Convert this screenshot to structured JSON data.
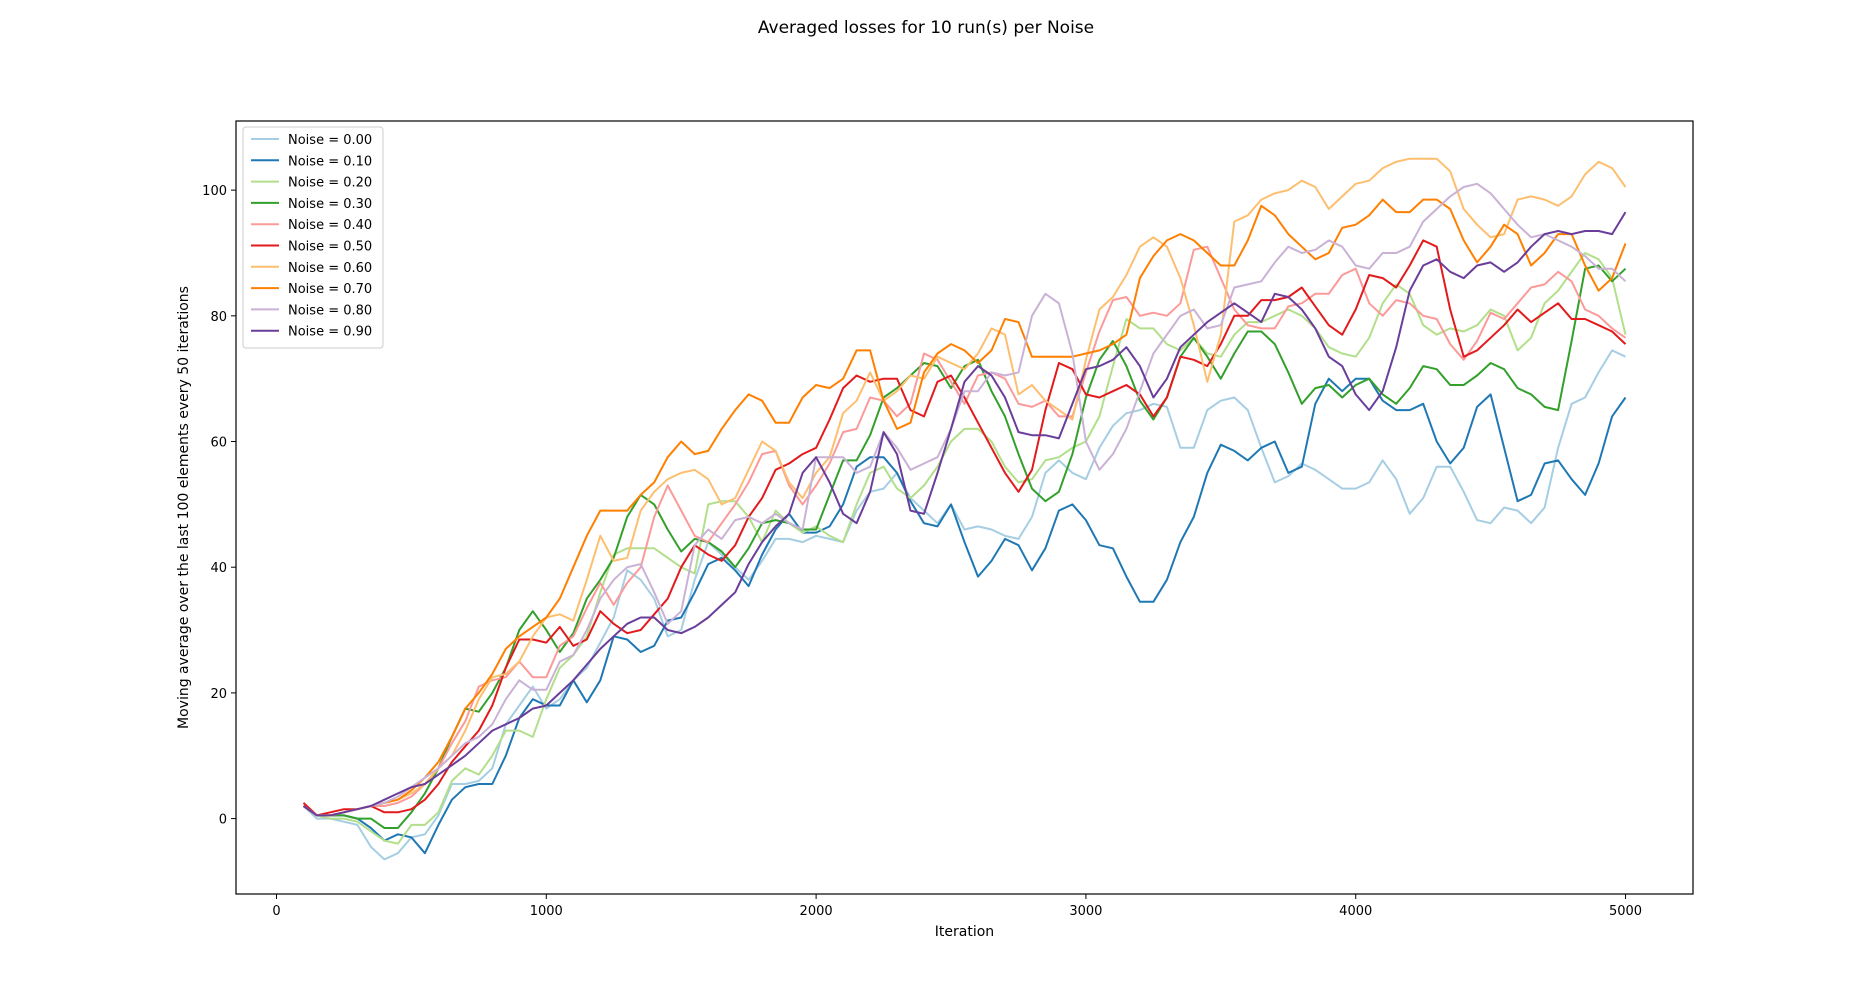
{
  "chart_data": {
    "type": "line",
    "title": "Averaged losses for 10 run(s) per Noise",
    "xlabel": "Iteration",
    "ylabel": "Moving average over the last 100 elements every 50 iterations",
    "xlim": [
      -150,
      5250
    ],
    "ylim": [
      -12,
      111
    ],
    "xticks": [
      0,
      1000,
      2000,
      3000,
      4000,
      5000
    ],
    "yticks": [
      0,
      20,
      40,
      60,
      80,
      100
    ],
    "grid": false,
    "legend": "top-left",
    "x": [
      100,
      150,
      200,
      250,
      300,
      350,
      400,
      450,
      500,
      550,
      600,
      650,
      700,
      750,
      800,
      850,
      900,
      950,
      1000,
      1050,
      1100,
      1150,
      1200,
      1250,
      1300,
      1350,
      1400,
      1450,
      1500,
      1550,
      1600,
      1650,
      1700,
      1750,
      1800,
      1850,
      1900,
      1950,
      2000,
      2050,
      2100,
      2150,
      2200,
      2250,
      2300,
      2350,
      2400,
      2450,
      2500,
      2550,
      2600,
      2650,
      2700,
      2750,
      2800,
      2850,
      2900,
      2950,
      3000,
      3050,
      3100,
      3150,
      3200,
      3250,
      3300,
      3350,
      3400,
      3450,
      3500,
      3550,
      3600,
      3650,
      3700,
      3750,
      3800,
      3850,
      3900,
      3950,
      4000,
      4050,
      4100,
      4150,
      4200,
      4250,
      4300,
      4350,
      4400,
      4450,
      4500,
      4550,
      4600,
      4650,
      4700,
      4750,
      4800,
      4850,
      4900,
      4950,
      5000
    ],
    "series": [
      {
        "name": "Noise = 0.00",
        "color": "#a6cee3",
        "values": [
          2.0,
          0.0,
          0.0,
          -0.5,
          -1.0,
          -4.5,
          -6.5,
          -5.5,
          -3.0,
          -2.5,
          0.5,
          5.5,
          5.5,
          6.0,
          8.0,
          15.0,
          18.0,
          21.0,
          17.5,
          19.0,
          22.0,
          24.0,
          28.0,
          32.0,
          39.5,
          38.0,
          35.0,
          29.0,
          30.0,
          38.0,
          44.0,
          42.0,
          40.0,
          38.0,
          41.0,
          44.5,
          44.5,
          44.0,
          45.0,
          44.5,
          44.0,
          49.0,
          52.0,
          52.5,
          55.0,
          51.0,
          49.0,
          47.0,
          50.0,
          46.0,
          46.5,
          46.0,
          45.0,
          44.5,
          48.0,
          55.0,
          57.0,
          55.0,
          54.0,
          59.0,
          62.5,
          64.5,
          65.0,
          66.0,
          65.5,
          59.0,
          59.0,
          65.0,
          66.5,
          67.0,
          65.0,
          59.0,
          53.5,
          54.5,
          56.5,
          55.5,
          54.0,
          52.5,
          52.5,
          53.5,
          57.0,
          54.0,
          48.5,
          51.0,
          56.0,
          56.0,
          52.0,
          47.5,
          47.0,
          49.5,
          49.0,
          47.0,
          49.5,
          59.0,
          66.0,
          67.0,
          71.0,
          74.5,
          73.5
        ]
      },
      {
        "name": "Noise = 0.10",
        "color": "#1f78b4",
        "values": [
          2.0,
          0.5,
          0.5,
          0.5,
          0.0,
          -1.5,
          -3.5,
          -2.5,
          -3.0,
          -5.5,
          -1.0,
          3.0,
          5.0,
          5.5,
          5.5,
          10.0,
          16.0,
          19.0,
          18.0,
          18.0,
          22.0,
          18.5,
          22.0,
          29.0,
          28.5,
          26.5,
          27.5,
          31.5,
          32.0,
          36.0,
          40.5,
          41.5,
          39.5,
          37.0,
          42.0,
          46.0,
          48.5,
          45.5,
          45.5,
          46.5,
          50.0,
          56.0,
          57.5,
          57.5,
          55.0,
          50.5,
          47.0,
          46.5,
          50.0,
          44.0,
          38.5,
          41.0,
          44.5,
          43.5,
          39.5,
          43.0,
          49.0,
          50.0,
          47.5,
          43.5,
          43.0,
          38.5,
          34.5,
          34.5,
          38.0,
          44.0,
          48.0,
          55.0,
          59.5,
          58.5,
          57.0,
          59.0,
          60.0,
          55.0,
          56.0,
          66.0,
          70.0,
          68.0,
          70.0,
          70.0,
          66.5,
          65.0,
          65.0,
          66.0,
          60.0,
          56.5,
          59.0,
          65.5,
          67.5,
          59.0,
          50.5,
          51.5,
          56.5,
          57.0,
          54.0,
          51.5,
          56.5,
          64.0,
          67.0
        ]
      },
      {
        "name": "Noise = 0.20",
        "color": "#b2df8a",
        "values": [
          2.0,
          0.5,
          0.0,
          0.0,
          -0.5,
          -2.0,
          -3.5,
          -4.0,
          -1.0,
          -1.0,
          1.0,
          6.0,
          8.0,
          7.0,
          10.0,
          14.0,
          14.0,
          13.0,
          19.0,
          24.0,
          26.0,
          29.0,
          36.0,
          42.0,
          43.0,
          43.0,
          43.0,
          41.5,
          40.0,
          39.0,
          50.0,
          50.5,
          50.5,
          48.0,
          44.0,
          49.0,
          47.0,
          45.5,
          46.5,
          45.0,
          44.0,
          50.0,
          55.0,
          56.0,
          52.5,
          51.0,
          53.0,
          56.0,
          60.0,
          62.0,
          62.0,
          60.0,
          56.0,
          53.5,
          54.0,
          57.0,
          57.5,
          59.0,
          60.0,
          64.0,
          72.0,
          79.5,
          78.0,
          78.0,
          75.5,
          74.5,
          76.5,
          74.0,
          73.5,
          77.0,
          79.0,
          79.0,
          80.0,
          81.0,
          80.0,
          78.0,
          75.0,
          74.0,
          73.5,
          76.5,
          82.0,
          85.0,
          83.5,
          78.5,
          77.0,
          78.0,
          77.5,
          78.5,
          81.0,
          80.0,
          74.5,
          76.5,
          82.0,
          84.0,
          87.0,
          90.0,
          89.0,
          86.0,
          77.0
        ]
      },
      {
        "name": "Noise = 0.30",
        "color": "#33a02c",
        "values": [
          2.0,
          0.5,
          0.5,
          0.5,
          0.0,
          0.0,
          -1.5,
          -1.5,
          1.0,
          4.0,
          8.0,
          13.0,
          17.5,
          17.0,
          20.0,
          24.0,
          30.0,
          33.0,
          30.0,
          26.5,
          29.5,
          35.0,
          38.0,
          41.5,
          48.0,
          51.5,
          50.0,
          46.0,
          42.5,
          44.5,
          44.0,
          42.5,
          40.0,
          43.0,
          47.0,
          47.5,
          47.0,
          46.0,
          46.0,
          51.5,
          57.0,
          57.0,
          61.0,
          67.0,
          68.5,
          70.5,
          72.5,
          72.0,
          68.5,
          72.0,
          73.0,
          68.0,
          64.0,
          58.0,
          52.5,
          50.5,
          52.0,
          58.0,
          67.0,
          73.0,
          76.0,
          72.0,
          66.5,
          63.5,
          67.0,
          73.5,
          76.5,
          73.5,
          70.0,
          74.0,
          77.5,
          77.5,
          75.5,
          71.0,
          66.0,
          68.5,
          69.0,
          67.0,
          69.0,
          70.0,
          67.5,
          66.0,
          68.5,
          72.0,
          71.5,
          69.0,
          69.0,
          70.5,
          72.5,
          71.5,
          68.5,
          67.5,
          65.5,
          65.0,
          76.0,
          87.5,
          88.0,
          85.5,
          87.5
        ]
      },
      {
        "name": "Noise = 0.40",
        "color": "#fb9a99",
        "values": [
          2.0,
          0.5,
          0.5,
          1.0,
          1.5,
          2.0,
          2.0,
          2.5,
          3.5,
          5.5,
          8.0,
          12.0,
          15.5,
          21.0,
          22.0,
          22.5,
          25.0,
          22.5,
          22.5,
          27.5,
          29.0,
          33.5,
          37.5,
          34.0,
          37.5,
          40.0,
          48.0,
          53.0,
          49.0,
          45.0,
          44.0,
          47.0,
          50.0,
          53.5,
          58.0,
          58.5,
          53.0,
          50.0,
          53.0,
          56.5,
          61.5,
          62.0,
          67.0,
          66.5,
          64.0,
          66.0,
          74.0,
          73.0,
          69.5,
          66.0,
          70.5,
          71.0,
          70.0,
          66.0,
          65.5,
          66.5,
          64.0,
          64.0,
          71.0,
          77.5,
          82.5,
          83.0,
          80.0,
          80.5,
          80.0,
          82.0,
          90.5,
          91.0,
          86.0,
          81.0,
          78.5,
          78.0,
          78.0,
          81.5,
          82.0,
          83.5,
          83.5,
          86.5,
          87.5,
          82.0,
          80.0,
          82.5,
          82.0,
          80.0,
          79.5,
          75.5,
          73.0,
          76.0,
          80.5,
          79.5,
          82.0,
          84.5,
          85.0,
          87.0,
          85.5,
          81.0,
          80.0,
          78.0,
          76.5
        ]
      },
      {
        "name": "Noise = 0.50",
        "color": "#e31a1c",
        "values": [
          2.5,
          0.5,
          1.0,
          1.5,
          1.5,
          2.0,
          1.0,
          1.0,
          1.5,
          3.0,
          5.5,
          9.0,
          11.5,
          14.0,
          18.0,
          24.0,
          28.5,
          28.5,
          28.0,
          30.5,
          27.5,
          28.5,
          33.0,
          31.0,
          29.5,
          30.0,
          32.5,
          35.0,
          40.0,
          43.5,
          42.0,
          41.0,
          43.5,
          48.0,
          51.0,
          55.5,
          56.5,
          58.0,
          59.0,
          63.5,
          68.5,
          70.5,
          69.5,
          70.0,
          70.0,
          65.0,
          64.0,
          69.5,
          70.5,
          67.0,
          63.0,
          59.0,
          55.0,
          52.0,
          55.5,
          65.0,
          72.5,
          71.5,
          67.5,
          67.0,
          68.0,
          69.0,
          67.5,
          64.0,
          67.0,
          73.5,
          73.0,
          72.0,
          75.5,
          80.0,
          80.0,
          82.5,
          82.5,
          83.0,
          84.5,
          81.5,
          78.5,
          77.0,
          81.0,
          86.5,
          86.0,
          84.5,
          88.0,
          92.0,
          91.0,
          81.0,
          73.5,
          74.5,
          76.5,
          78.5,
          81.0,
          79.0,
          80.5,
          82.0,
          79.5,
          79.5,
          78.5,
          77.5,
          75.5
        ]
      },
      {
        "name": "Noise = 0.60",
        "color": "#fdbf6f",
        "values": [
          2.0,
          0.5,
          0.5,
          1.0,
          1.5,
          2.0,
          2.5,
          3.0,
          4.0,
          5.5,
          8.0,
          10.0,
          14.0,
          19.0,
          22.5,
          23.0,
          25.0,
          29.0,
          32.0,
          32.5,
          31.5,
          38.0,
          45.0,
          41.0,
          41.5,
          49.0,
          52.0,
          54.0,
          55.0,
          55.5,
          54.0,
          50.0,
          51.0,
          55.5,
          60.0,
          58.5,
          53.5,
          51.0,
          55.0,
          57.5,
          64.5,
          66.5,
          71.0,
          66.5,
          68.0,
          70.5,
          70.0,
          73.5,
          72.5,
          71.5,
          74.0,
          78.0,
          77.0,
          67.5,
          69.0,
          66.5,
          65.0,
          63.5,
          73.0,
          81.0,
          83.0,
          86.5,
          91.0,
          92.5,
          91.0,
          86.0,
          78.5,
          69.5,
          77.0,
          95.0,
          96.0,
          98.5,
          99.5,
          100.0,
          101.5,
          100.5,
          97.0,
          99.0,
          101.0,
          101.5,
          103.5,
          104.5,
          105.0,
          105.0,
          105.0,
          103.0,
          97.0,
          94.5,
          92.5,
          93.0,
          98.5,
          99.0,
          98.5,
          97.5,
          99.0,
          102.5,
          104.5,
          103.5,
          100.5
        ]
      },
      {
        "name": "Noise = 0.70",
        "color": "#ff7f00",
        "values": [
          2.0,
          0.5,
          0.5,
          1.0,
          1.5,
          2.0,
          2.5,
          3.0,
          4.5,
          6.5,
          9.0,
          13.0,
          17.5,
          20.0,
          23.0,
          27.0,
          29.0,
          30.5,
          32.0,
          35.0,
          40.0,
          45.0,
          49.0,
          49.0,
          49.0,
          51.5,
          53.5,
          57.5,
          60.0,
          58.0,
          58.5,
          62.0,
          65.0,
          67.5,
          66.5,
          63.0,
          63.0,
          67.0,
          69.0,
          68.5,
          70.0,
          74.5,
          74.5,
          66.5,
          62.0,
          63.0,
          71.0,
          74.0,
          75.5,
          74.5,
          72.5,
          74.5,
          79.5,
          79.0,
          73.5,
          73.5,
          73.5,
          73.5,
          74.0,
          74.5,
          75.5,
          77.0,
          86.0,
          89.5,
          92.0,
          93.0,
          92.0,
          90.0,
          88.0,
          88.0,
          92.0,
          97.5,
          96.0,
          93.0,
          91.0,
          89.0,
          90.0,
          94.0,
          94.5,
          96.0,
          98.5,
          96.5,
          96.5,
          98.5,
          98.5,
          97.0,
          92.0,
          88.5,
          91.0,
          94.5,
          93.0,
          88.0,
          90.0,
          93.0,
          93.0,
          88.0,
          84.0,
          86.0,
          91.5
        ]
      },
      {
        "name": "Noise = 0.80",
        "color": "#cab2d6",
        "values": [
          2.0,
          0.5,
          0.5,
          1.0,
          1.5,
          2.0,
          2.5,
          3.5,
          5.0,
          6.5,
          8.0,
          10.0,
          12.0,
          13.0,
          15.0,
          19.0,
          22.0,
          20.5,
          20.5,
          25.0,
          26.0,
          30.0,
          35.0,
          38.0,
          40.0,
          40.5,
          36.0,
          31.0,
          33.0,
          43.5,
          46.0,
          44.5,
          47.5,
          48.0,
          47.0,
          48.5,
          47.0,
          46.0,
          57.5,
          57.5,
          57.5,
          55.0,
          56.0,
          61.5,
          59.0,
          55.5,
          56.5,
          57.5,
          62.0,
          68.0,
          68.0,
          71.0,
          70.5,
          71.0,
          80.0,
          83.5,
          82.0,
          74.0,
          60.0,
          55.5,
          58.0,
          62.0,
          68.0,
          74.0,
          77.0,
          80.0,
          81.0,
          78.0,
          78.5,
          84.5,
          85.0,
          85.5,
          88.5,
          91.0,
          90.0,
          90.5,
          92.0,
          91.0,
          88.0,
          87.5,
          90.0,
          90.0,
          91.0,
          95.0,
          97.0,
          99.0,
          100.5,
          101.0,
          99.5,
          97.0,
          94.5,
          92.5,
          93.0,
          92.0,
          91.0,
          89.5,
          87.5,
          87.5,
          85.5
        ]
      },
      {
        "name": "Noise = 0.90",
        "color": "#6a3d9a",
        "values": [
          2.0,
          0.5,
          0.5,
          1.0,
          1.5,
          2.0,
          3.0,
          4.0,
          5.0,
          5.5,
          7.0,
          8.5,
          10.0,
          12.0,
          14.0,
          15.0,
          16.0,
          17.5,
          18.0,
          20.0,
          22.0,
          24.5,
          27.0,
          29.0,
          31.0,
          32.0,
          32.0,
          30.0,
          29.5,
          30.5,
          32.0,
          34.0,
          36.0,
          40.5,
          44.0,
          46.5,
          48.5,
          55.0,
          57.5,
          53.5,
          48.5,
          47.0,
          52.0,
          61.5,
          58.0,
          49.0,
          48.5,
          55.0,
          62.0,
          69.5,
          72.0,
          70.5,
          67.0,
          61.5,
          61.0,
          61.0,
          60.5,
          66.0,
          71.5,
          72.0,
          73.0,
          75.0,
          72.0,
          67.0,
          70.0,
          75.0,
          77.0,
          79.0,
          80.5,
          82.0,
          80.5,
          79.0,
          83.5,
          83.0,
          81.0,
          78.0,
          73.5,
          72.0,
          67.5,
          65.0,
          68.0,
          75.0,
          84.0,
          88.0,
          89.0,
          87.0,
          86.0,
          88.0,
          88.5,
          87.0,
          88.5,
          91.0,
          93.0,
          93.5,
          93.0,
          93.5,
          93.5,
          93.0,
          96.5
        ]
      }
    ]
  }
}
